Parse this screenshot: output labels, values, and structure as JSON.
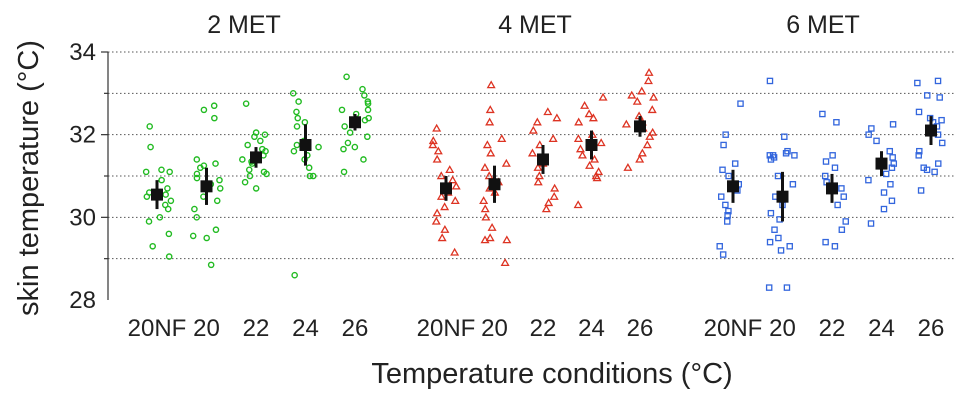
{
  "chart_data": {
    "type": "scatter",
    "ylabel": "skin temperature (°C)",
    "xlabel": "Temperature conditions (°C)",
    "ylim": [
      28,
      34
    ],
    "yticks": [
      28,
      30,
      32,
      34
    ],
    "gridlines": [
      29,
      30,
      31,
      32,
      33,
      34
    ],
    "grid": true,
    "groups": [
      {
        "title": "2 MET",
        "color": "#22bb22",
        "marker": "circle",
        "conditions": [
          {
            "label": "20NF",
            "mean": 30.55,
            "err": 0.35,
            "points": [
              32.2,
              31.7,
              31.15,
              31.1,
              31.1,
              30.9,
              30.7,
              30.6,
              30.55,
              30.5,
              30.4,
              30.3,
              30.2,
              30.0,
              29.9,
              29.6,
              29.3,
              29.05
            ]
          },
          {
            "label": "20",
            "mean": 30.75,
            "err": 0.45,
            "points": [
              32.7,
              32.6,
              32.4,
              31.4,
              31.3,
              31.25,
              31.2,
              31.05,
              30.95,
              30.9,
              30.8,
              30.7,
              30.5,
              30.4,
              30.2,
              30.0,
              29.7,
              29.55,
              29.5,
              28.85
            ]
          },
          {
            "label": "22",
            "mean": 31.45,
            "err": 0.25,
            "points": [
              32.75,
              32.05,
              32.0,
              31.95,
              31.85,
              31.75,
              31.65,
              31.6,
              31.5,
              31.4,
              31.35,
              31.3,
              31.15,
              31.1,
              31.05,
              31.0,
              30.85,
              30.7
            ]
          },
          {
            "label": "24",
            "mean": 31.75,
            "err": 0.5,
            "points": [
              33.0,
              32.8,
              32.55,
              32.4,
              32.3,
              32.2,
              31.85,
              31.8,
              31.75,
              31.7,
              31.6,
              31.5,
              31.4,
              31.2,
              31.0,
              31.0,
              28.6
            ]
          },
          {
            "label": "26",
            "mean": 32.3,
            "err": 0.2,
            "points": [
              33.4,
              33.1,
              32.95,
              32.8,
              32.75,
              32.6,
              32.6,
              32.5,
              32.4,
              32.35,
              32.3,
              32.2,
              32.05,
              31.95,
              31.8,
              31.7,
              31.65,
              31.4,
              31.1
            ]
          }
        ]
      },
      {
        "title": "4 MET",
        "color": "#dd3322",
        "marker": "triangle",
        "conditions": [
          {
            "label": "20NF",
            "mean": 30.7,
            "err": 0.3,
            "points": [
              32.15,
              31.85,
              31.75,
              31.6,
              31.4,
              31.15,
              31.0,
              30.9,
              30.75,
              30.6,
              30.5,
              30.4,
              30.25,
              30.1,
              29.9,
              29.7,
              29.5,
              29.15
            ]
          },
          {
            "label": "20",
            "mean": 30.8,
            "err": 0.45,
            "points": [
              33.2,
              32.6,
              32.3,
              31.9,
              31.75,
              31.55,
              31.3,
              31.2,
              31.0,
              30.85,
              30.7,
              30.6,
              30.4,
              30.2,
              30.0,
              29.75,
              29.5,
              29.45,
              29.45,
              28.9
            ]
          },
          {
            "label": "22",
            "mean": 31.4,
            "err": 0.35,
            "points": [
              32.55,
              32.4,
              32.3,
              32.1,
              31.9,
              31.75,
              31.55,
              31.3,
              31.2,
              31.0,
              30.85,
              30.7,
              30.5,
              30.35,
              30.2
            ]
          },
          {
            "label": "24",
            "mean": 31.75,
            "err": 0.35,
            "points": [
              32.9,
              32.7,
              32.5,
              32.4,
              32.3,
              32.0,
              31.9,
              31.8,
              31.65,
              31.5,
              31.4,
              31.25,
              31.1,
              31.0,
              30.95,
              30.3
            ]
          },
          {
            "label": "26",
            "mean": 32.2,
            "err": 0.25,
            "points": [
              33.5,
              33.3,
              33.05,
              32.95,
              32.9,
              32.8,
              32.6,
              32.45,
              32.3,
              32.25,
              32.15,
              32.05,
              31.95,
              31.75,
              31.55,
              31.4,
              31.2
            ]
          }
        ]
      },
      {
        "title": "6 MET",
        "color": "#3366dd",
        "marker": "square",
        "conditions": [
          {
            "label": "20NF",
            "mean": 30.75,
            "err": 0.4,
            "points": [
              32.75,
              32.0,
              31.75,
              31.3,
              31.15,
              31.0,
              30.8,
              30.7,
              30.65,
              30.5,
              30.3,
              30.15,
              30.05,
              29.9,
              29.3,
              29.1
            ]
          },
          {
            "label": "20",
            "mean": 30.5,
            "err": 0.6,
            "points": [
              33.3,
              31.95,
              31.6,
              31.55,
              31.5,
              31.5,
              31.5,
              31.45,
              31.4,
              31.0,
              30.8,
              30.5,
              30.3,
              30.1,
              29.95,
              29.7,
              29.5,
              29.4,
              29.3,
              29.2,
              28.3,
              28.3
            ]
          },
          {
            "label": "22",
            "mean": 30.7,
            "err": 0.35,
            "points": [
              32.5,
              32.3,
              31.5,
              31.35,
              31.2,
              31.0,
              30.85,
              30.7,
              30.5,
              30.3,
              29.9,
              29.7,
              29.4,
              29.3
            ]
          },
          {
            "label": "24",
            "mean": 31.3,
            "err": 0.3,
            "points": [
              32.25,
              32.15,
              32.0,
              31.85,
              31.6,
              31.45,
              31.3,
              31.2,
              31.05,
              30.9,
              30.8,
              30.6,
              30.4,
              30.2,
              29.85
            ]
          },
          {
            "label": "26",
            "mean": 32.1,
            "err": 0.35,
            "points": [
              33.3,
              33.25,
              32.95,
              32.9,
              32.55,
              32.4,
              32.35,
              32.3,
              32.2,
              32.0,
              31.8,
              31.6,
              31.5,
              31.3,
              31.2,
              31.15,
              31.1,
              30.65
            ]
          }
        ]
      }
    ]
  }
}
